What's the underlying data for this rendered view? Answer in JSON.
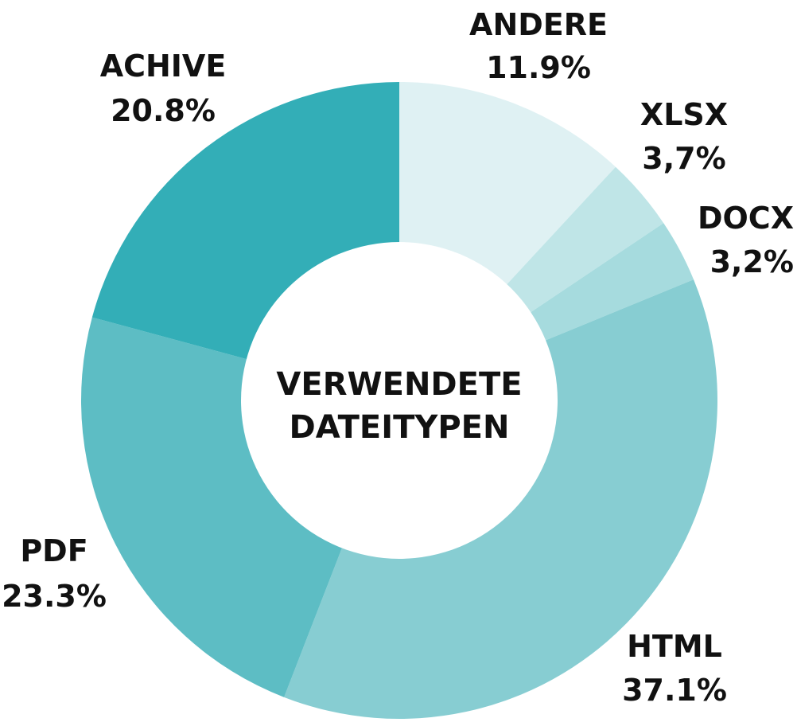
{
  "chart_data": {
    "type": "pie",
    "donut": true,
    "center_title_lines": [
      "VERWENDETE",
      "DATEITYPEN"
    ],
    "slices": [
      {
        "name": "ANDERE",
        "value_label": "11.9%",
        "value": 11.9,
        "color": "#dff1f3"
      },
      {
        "name": "XLSX",
        "value_label": "3,7%",
        "value": 3.7,
        "color": "#bfe5e7"
      },
      {
        "name": "DOCX",
        "value_label": "3,2%",
        "value": 3.2,
        "color": "#a6dbde"
      },
      {
        "name": "HTML",
        "value_label": "37.1%",
        "value": 37.1,
        "color": "#87cdd2"
      },
      {
        "name": "PDF",
        "value_label": "23.3%",
        "value": 23.3,
        "color": "#5dbdc4"
      },
      {
        "name": "ACHIVE",
        "value_label": "20.8%",
        "value": 20.8,
        "color": "#33aeb7"
      }
    ]
  }
}
